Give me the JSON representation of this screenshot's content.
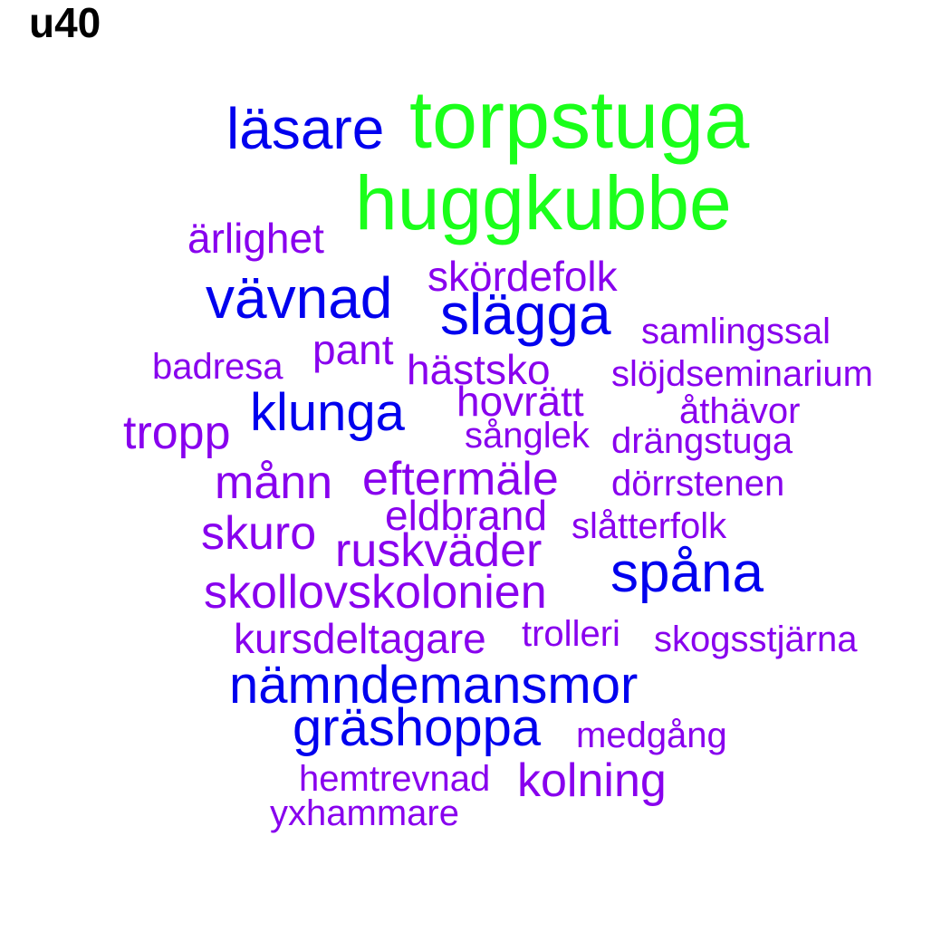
{
  "chart_data": {
    "type": "wordcloud",
    "title": "u40",
    "colors": {
      "high": "#1aff1a",
      "mid": "#0000ee",
      "low": "#8800ee"
    },
    "words": [
      {
        "text": "torpstuga",
        "weight": 10,
        "color": "#1aff1a"
      },
      {
        "text": "huggkubbe",
        "weight": 9,
        "color": "#1aff1a"
      },
      {
        "text": "läsare",
        "weight": 6,
        "color": "#0000ee"
      },
      {
        "text": "vävnad",
        "weight": 6,
        "color": "#0000ee"
      },
      {
        "text": "slägga",
        "weight": 6,
        "color": "#0000ee"
      },
      {
        "text": "spåna",
        "weight": 6,
        "color": "#0000ee"
      },
      {
        "text": "klunga",
        "weight": 5.5,
        "color": "#0000ee"
      },
      {
        "text": "nämndemansmor",
        "weight": 5.5,
        "color": "#0000ee"
      },
      {
        "text": "gräshoppa",
        "weight": 5.5,
        "color": "#0000ee"
      },
      {
        "text": "ärlighet",
        "weight": 3,
        "color": "#8800ee"
      },
      {
        "text": "skördefolk",
        "weight": 3,
        "color": "#8800ee"
      },
      {
        "text": "samlingssal",
        "weight": 2.5,
        "color": "#8800ee"
      },
      {
        "text": "pant",
        "weight": 3,
        "color": "#8800ee"
      },
      {
        "text": "badresa",
        "weight": 2.5,
        "color": "#8800ee"
      },
      {
        "text": "hästsko",
        "weight": 3,
        "color": "#8800ee"
      },
      {
        "text": "slöjdseminarium",
        "weight": 2.5,
        "color": "#8800ee"
      },
      {
        "text": "hovrätt",
        "weight": 3,
        "color": "#8800ee"
      },
      {
        "text": "åthävor",
        "weight": 2.5,
        "color": "#8800ee"
      },
      {
        "text": "tropp",
        "weight": 4,
        "color": "#8800ee"
      },
      {
        "text": "sånglek",
        "weight": 2.5,
        "color": "#8800ee"
      },
      {
        "text": "drängstuga",
        "weight": 2.5,
        "color": "#8800ee"
      },
      {
        "text": "månn",
        "weight": 4,
        "color": "#8800ee"
      },
      {
        "text": "eftermäle",
        "weight": 4,
        "color": "#8800ee"
      },
      {
        "text": "dörrstenen",
        "weight": 2.5,
        "color": "#8800ee"
      },
      {
        "text": "eldbrand",
        "weight": 3,
        "color": "#8800ee"
      },
      {
        "text": "slåtterfolk",
        "weight": 2.5,
        "color": "#8800ee"
      },
      {
        "text": "skuro",
        "weight": 4,
        "color": "#8800ee"
      },
      {
        "text": "ruskväder",
        "weight": 4,
        "color": "#8800ee"
      },
      {
        "text": "skollovskolonien",
        "weight": 4,
        "color": "#8800ee"
      },
      {
        "text": "kursdeltagare",
        "weight": 3,
        "color": "#8800ee"
      },
      {
        "text": "trolleri",
        "weight": 2.5,
        "color": "#8800ee"
      },
      {
        "text": "skogsstjärna",
        "weight": 2.5,
        "color": "#8800ee"
      },
      {
        "text": "medgång",
        "weight": 2.5,
        "color": "#8800ee"
      },
      {
        "text": "hemtrevnad",
        "weight": 2.5,
        "color": "#8800ee"
      },
      {
        "text": "kolning",
        "weight": 4,
        "color": "#8800ee"
      },
      {
        "text": "yxhammare",
        "weight": 2.5,
        "color": "#8800ee"
      }
    ]
  }
}
